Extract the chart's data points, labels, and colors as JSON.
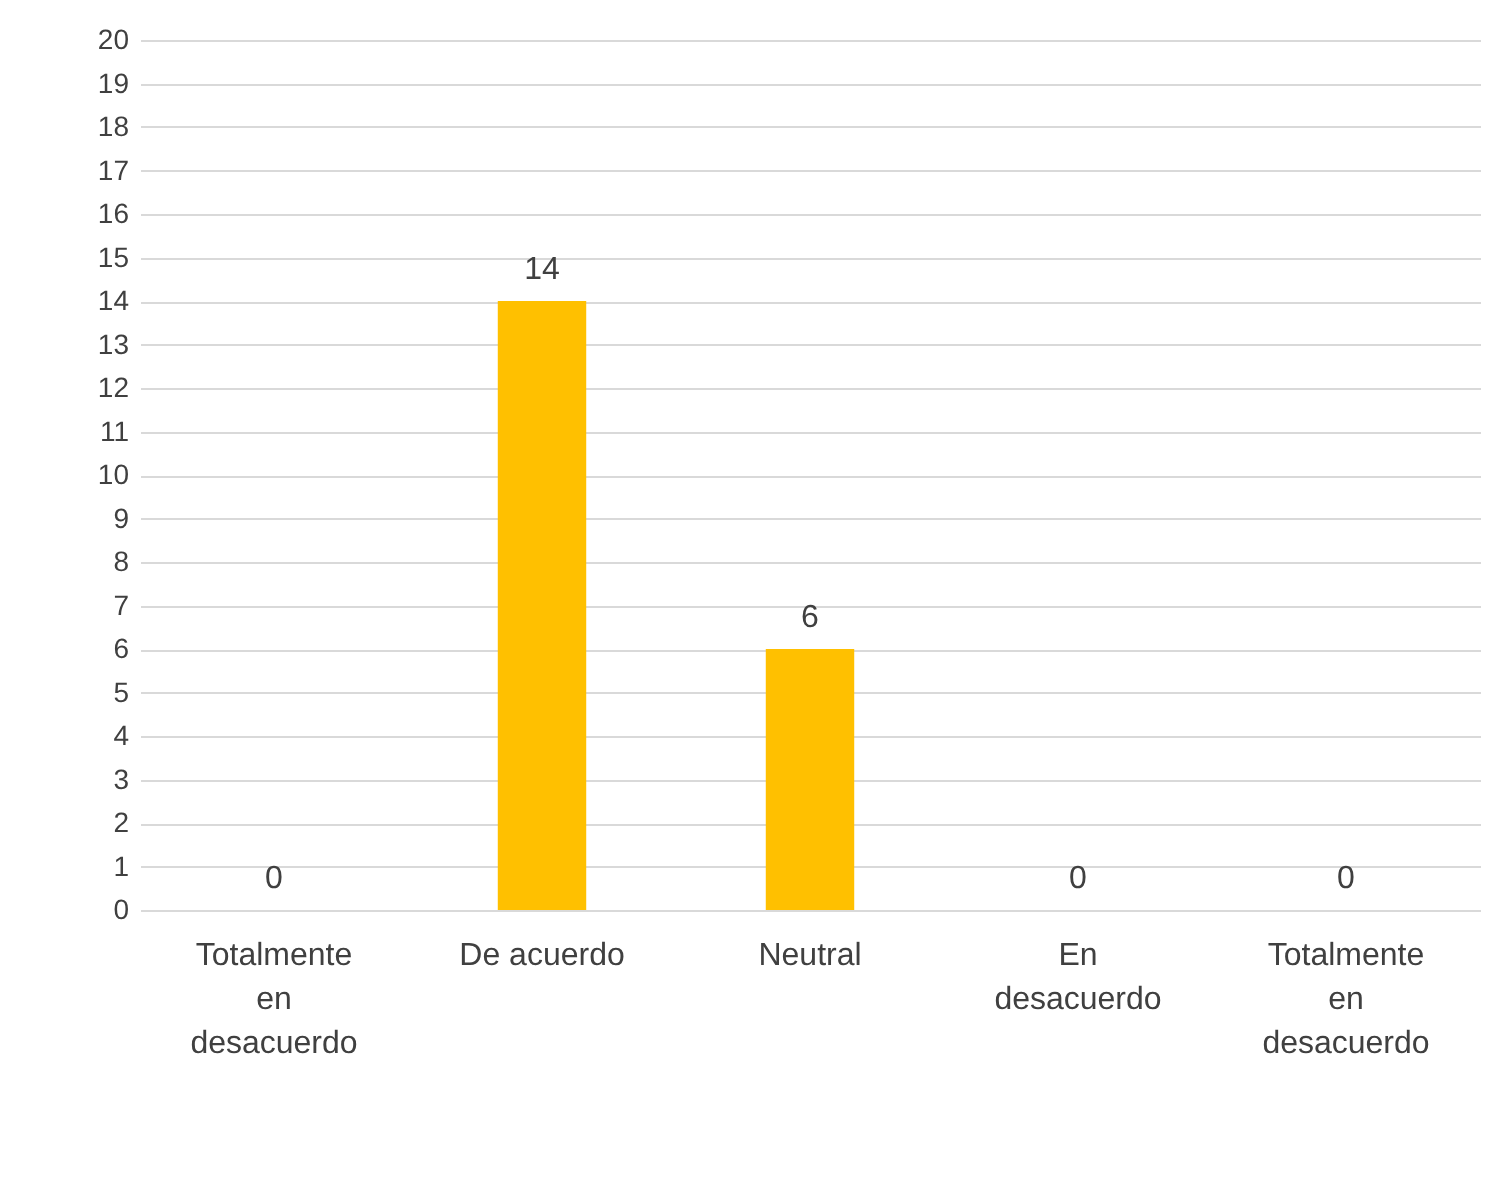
{
  "chart_data": {
    "type": "bar",
    "categories": [
      "Totalmente en desacuerdo",
      "De acuerdo",
      "Neutral",
      "En desacuerdo",
      "Totalmente en desacuerdo"
    ],
    "values": [
      0,
      14,
      6,
      0,
      0
    ],
    "color": "#ffc000",
    "ylim": [
      0,
      20
    ],
    "yticks": [
      0,
      1,
      2,
      3,
      4,
      5,
      6,
      7,
      8,
      9,
      10,
      11,
      12,
      13,
      14,
      15,
      16,
      17,
      18,
      19,
      20
    ],
    "grid": "y",
    "data_labels": true
  }
}
